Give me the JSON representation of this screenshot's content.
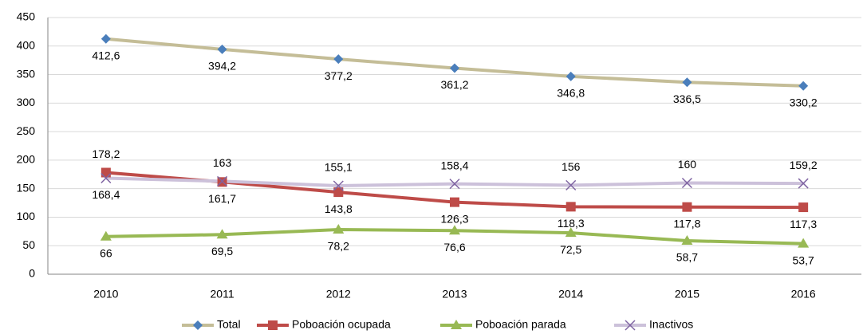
{
  "chart_data": {
    "type": "line",
    "categories": [
      "2010",
      "2011",
      "2012",
      "2013",
      "2014",
      "2015",
      "2016"
    ],
    "series": [
      {
        "name": "Total",
        "color": "#c4bd97",
        "marker_color": "#4a7ebb",
        "marker": "diamond",
        "values": [
          412.6,
          394.2,
          377.2,
          361.2,
          346.8,
          336.5,
          330.2
        ],
        "value_labels": [
          "412,6",
          "394,2",
          "377,2",
          "361,2",
          "346,8",
          "336,5",
          "330,2"
        ]
      },
      {
        "name": "Poboación ocupada",
        "color": "#be4b48",
        "marker_color": "#be4b48",
        "marker": "square",
        "values": [
          178.2,
          161.7,
          143.8,
          126.3,
          118.3,
          117.8,
          117.3
        ],
        "value_labels": [
          "178,2",
          "161,7",
          "143,8",
          "126,3",
          "118,3",
          "117,8",
          "117,3"
        ]
      },
      {
        "name": "Poboación parada",
        "color": "#98b954",
        "marker_color": "#98b954",
        "marker": "triangle",
        "values": [
          66,
          69.5,
          78.2,
          76.6,
          72.5,
          58.7,
          53.7
        ],
        "value_labels": [
          "66",
          "69,5",
          "78,2",
          "76,6",
          "72,5",
          "58,7",
          "53,7"
        ]
      },
      {
        "name": "Inactivos",
        "color": "#ccc1da",
        "marker_color": "#7f64a2",
        "marker": "x",
        "values": [
          168.4,
          163,
          155.1,
          158.4,
          156,
          160,
          159.2
        ],
        "value_labels": [
          "168,4",
          "163",
          "155,1",
          "158,4",
          "156",
          "160",
          "159,2"
        ]
      }
    ],
    "ylim": [
      0,
      450
    ],
    "yticks": [
      0,
      50,
      100,
      150,
      200,
      250,
      300,
      350,
      400,
      450
    ],
    "grid": true,
    "legend": "bottom"
  }
}
